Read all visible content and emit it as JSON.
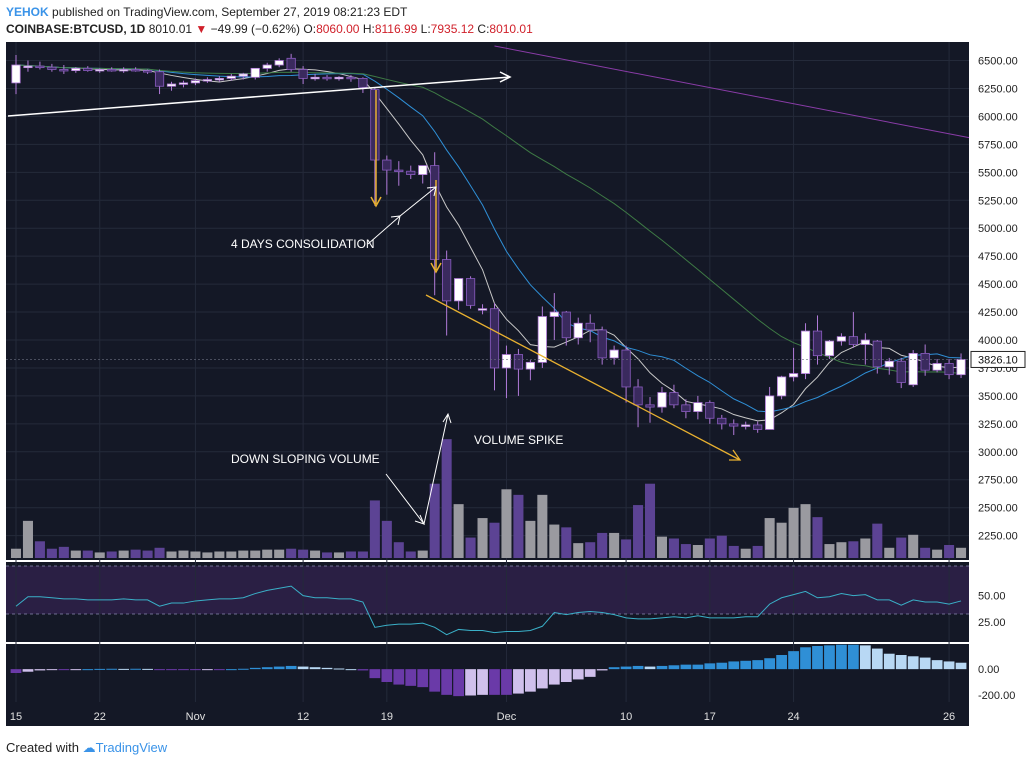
{
  "header": {
    "author": "YEHOK",
    "published": "published on TradingView.com, September 27, 2019 08:21:23 EDT",
    "symbol": "COINBASE:BTCUSD, 1D",
    "last": "8010.01",
    "change": "−49.99 (−0.62%)",
    "o_label": "O:",
    "o_value": "8060.00",
    "h_label": "H:",
    "h_value": "8116.99",
    "l_label": "L:",
    "l_value": "7935.12",
    "c_label": "C:",
    "c_value": "8010.01"
  },
  "footer": {
    "created_with": "Created with",
    "brand": "TradingView"
  },
  "colors": {
    "background": "#141826",
    "up": "#ffffff",
    "down": "#3a2a5e",
    "volume_up": "#9a9aa0",
    "volume_down": "#5c4394",
    "sma_fast": "#c8c8c8",
    "sma_mid": "#2f8fd6",
    "sma_slow": "#3e7a45",
    "sma_long": "#8a3ca8",
    "rsi_line": "#3ab0c8",
    "annotation": "#e8b030",
    "text_light": "#ffffff"
  },
  "chart_data": {
    "type": "candlestick",
    "x_tick_labels": [
      "15",
      "22",
      "Nov",
      "12",
      "19",
      "Dec",
      "10",
      "17",
      "24",
      "26"
    ],
    "price_axis": {
      "ticks": [
        2250,
        2500,
        2750,
        3000,
        3250,
        3500,
        3750,
        4000,
        4250,
        4500,
        4750,
        5000,
        5250,
        5500,
        5750,
        6000,
        6250,
        6500
      ],
      "tick_labels": [
        "2250.00",
        "2500.00",
        "2750.00",
        "3000.00",
        "3250.00",
        "3500.00",
        "3750.00",
        "4000.00",
        "4250.00",
        "4500.00",
        "4750.00",
        "5000.00",
        "5250.00",
        "5500.00",
        "5750.00",
        "6000.00",
        "6250.00",
        "6500.00"
      ],
      "range": [
        2050,
        6630
      ],
      "last_price_label": "3826.10"
    },
    "rsi_axis": {
      "tick_labels": [
        "50.00",
        "25.00"
      ],
      "ticks": [
        50,
        25
      ],
      "range": [
        8,
        80
      ]
    },
    "macd_axis": {
      "tick_labels": [
        "0.00",
        "-200.00"
      ],
      "ticks": [
        0,
        -200
      ],
      "range": [
        -240,
        180
      ]
    },
    "annotations": {
      "consolidation": "4 DAYS CONSOLIDATION",
      "volume_spike": "VOLUME SPIKE",
      "down_sloping_volume": "DOWN SLOPING VOLUME"
    },
    "candles": [
      {
        "o": 6300,
        "h": 6550,
        "l": 6200,
        "c": 6460
      },
      {
        "o": 6440,
        "h": 6500,
        "l": 6400,
        "c": 6450
      },
      {
        "o": 6450,
        "h": 6490,
        "l": 6420,
        "c": 6440
      },
      {
        "o": 6440,
        "h": 6470,
        "l": 6400,
        "c": 6420
      },
      {
        "o": 6420,
        "h": 6460,
        "l": 6380,
        "c": 6410
      },
      {
        "o": 6410,
        "h": 6440,
        "l": 6390,
        "c": 6430
      },
      {
        "o": 6430,
        "h": 6450,
        "l": 6400,
        "c": 6410
      },
      {
        "o": 6410,
        "h": 6430,
        "l": 6390,
        "c": 6420
      },
      {
        "o": 6420,
        "h": 6440,
        "l": 6400,
        "c": 6410
      },
      {
        "o": 6410,
        "h": 6440,
        "l": 6390,
        "c": 6420
      },
      {
        "o": 6420,
        "h": 6440,
        "l": 6400,
        "c": 6410
      },
      {
        "o": 6410,
        "h": 6420,
        "l": 6380,
        "c": 6400
      },
      {
        "o": 6400,
        "h": 6420,
        "l": 6200,
        "c": 6270
      },
      {
        "o": 6270,
        "h": 6310,
        "l": 6230,
        "c": 6290
      },
      {
        "o": 6290,
        "h": 6320,
        "l": 6260,
        "c": 6300
      },
      {
        "o": 6300,
        "h": 6340,
        "l": 6280,
        "c": 6320
      },
      {
        "o": 6320,
        "h": 6350,
        "l": 6300,
        "c": 6330
      },
      {
        "o": 6330,
        "h": 6360,
        "l": 6310,
        "c": 6340
      },
      {
        "o": 6340,
        "h": 6380,
        "l": 6320,
        "c": 6360
      },
      {
        "o": 6360,
        "h": 6390,
        "l": 6330,
        "c": 6380
      },
      {
        "o": 6350,
        "h": 6420,
        "l": 6330,
        "c": 6430
      },
      {
        "o": 6430,
        "h": 6480,
        "l": 6400,
        "c": 6460
      },
      {
        "o": 6460,
        "h": 6520,
        "l": 6440,
        "c": 6500
      },
      {
        "o": 6520,
        "h": 6560,
        "l": 6400,
        "c": 6420
      },
      {
        "o": 6420,
        "h": 6450,
        "l": 6290,
        "c": 6340
      },
      {
        "o": 6340,
        "h": 6380,
        "l": 6320,
        "c": 6350
      },
      {
        "o": 6350,
        "h": 6370,
        "l": 6320,
        "c": 6340
      },
      {
        "o": 6340,
        "h": 6360,
        "l": 6320,
        "c": 6350
      },
      {
        "o": 6350,
        "h": 6370,
        "l": 6310,
        "c": 6340
      },
      {
        "o": 6340,
        "h": 6350,
        "l": 6210,
        "c": 6260
      },
      {
        "o": 6240,
        "h": 6260,
        "l": 5200,
        "c": 5610
      },
      {
        "o": 5610,
        "h": 5650,
        "l": 5300,
        "c": 5520
      },
      {
        "o": 5520,
        "h": 5600,
        "l": 5380,
        "c": 5510
      },
      {
        "o": 5510,
        "h": 5560,
        "l": 5440,
        "c": 5480
      },
      {
        "o": 5480,
        "h": 5540,
        "l": 5400,
        "c": 5560
      },
      {
        "o": 5560,
        "h": 5680,
        "l": 4400,
        "c": 4720
      },
      {
        "o": 4720,
        "h": 4800,
        "l": 4040,
        "c": 4350
      },
      {
        "o": 4350,
        "h": 4550,
        "l": 4270,
        "c": 4550
      },
      {
        "o": 4550,
        "h": 4570,
        "l": 4280,
        "c": 4310
      },
      {
        "o": 4270,
        "h": 4320,
        "l": 4230,
        "c": 4280
      },
      {
        "o": 4280,
        "h": 4330,
        "l": 3550,
        "c": 3750
      },
      {
        "o": 3750,
        "h": 3950,
        "l": 3480,
        "c": 3870
      },
      {
        "o": 3870,
        "h": 3920,
        "l": 3500,
        "c": 3740
      },
      {
        "o": 3740,
        "h": 3820,
        "l": 3640,
        "c": 3800
      },
      {
        "o": 3800,
        "h": 4300,
        "l": 3750,
        "c": 4210
      },
      {
        "o": 4210,
        "h": 4420,
        "l": 4000,
        "c": 4250
      },
      {
        "o": 4250,
        "h": 4260,
        "l": 3950,
        "c": 4020
      },
      {
        "o": 4020,
        "h": 4200,
        "l": 3960,
        "c": 4150
      },
      {
        "o": 4150,
        "h": 4230,
        "l": 3980,
        "c": 4090
      },
      {
        "o": 4090,
        "h": 4120,
        "l": 3780,
        "c": 3840
      },
      {
        "o": 3840,
        "h": 3950,
        "l": 3780,
        "c": 3910
      },
      {
        "o": 3910,
        "h": 3950,
        "l": 3440,
        "c": 3580
      },
      {
        "o": 3580,
        "h": 3650,
        "l": 3220,
        "c": 3420
      },
      {
        "o": 3420,
        "h": 3490,
        "l": 3260,
        "c": 3400
      },
      {
        "o": 3400,
        "h": 3580,
        "l": 3350,
        "c": 3530
      },
      {
        "o": 3530,
        "h": 3600,
        "l": 3390,
        "c": 3420
      },
      {
        "o": 3420,
        "h": 3470,
        "l": 3300,
        "c": 3360
      },
      {
        "o": 3360,
        "h": 3500,
        "l": 3290,
        "c": 3440
      },
      {
        "o": 3440,
        "h": 3460,
        "l": 3250,
        "c": 3300
      },
      {
        "o": 3300,
        "h": 3330,
        "l": 3200,
        "c": 3250
      },
      {
        "o": 3250,
        "h": 3290,
        "l": 3150,
        "c": 3230
      },
      {
        "o": 3230,
        "h": 3270,
        "l": 3200,
        "c": 3240
      },
      {
        "o": 3240,
        "h": 3270,
        "l": 3170,
        "c": 3200
      },
      {
        "o": 3200,
        "h": 3580,
        "l": 3200,
        "c": 3500
      },
      {
        "o": 3500,
        "h": 3680,
        "l": 3470,
        "c": 3670
      },
      {
        "o": 3670,
        "h": 3930,
        "l": 3630,
        "c": 3700
      },
      {
        "o": 3700,
        "h": 4150,
        "l": 3650,
        "c": 4080
      },
      {
        "o": 4080,
        "h": 4220,
        "l": 3780,
        "c": 3860
      },
      {
        "o": 3860,
        "h": 4000,
        "l": 3830,
        "c": 3990
      },
      {
        "o": 3990,
        "h": 4060,
        "l": 3950,
        "c": 4030
      },
      {
        "o": 4030,
        "h": 4250,
        "l": 3930,
        "c": 3960
      },
      {
        "o": 3960,
        "h": 4060,
        "l": 3780,
        "c": 4000
      },
      {
        "o": 3990,
        "h": 4000,
        "l": 3700,
        "c": 3760
      },
      {
        "o": 3760,
        "h": 3840,
        "l": 3690,
        "c": 3810
      },
      {
        "o": 3810,
        "h": 3840,
        "l": 3570,
        "c": 3620
      },
      {
        "o": 3600,
        "h": 3910,
        "l": 3580,
        "c": 3880
      },
      {
        "o": 3880,
        "h": 3960,
        "l": 3680,
        "c": 3730
      },
      {
        "o": 3730,
        "h": 3830,
        "l": 3710,
        "c": 3790
      },
      {
        "o": 3790,
        "h": 3830,
        "l": 3650,
        "c": 3690
      },
      {
        "o": 3690,
        "h": 3880,
        "l": 3660,
        "c": 3826
      }
    ],
    "volume": [
      10,
      40,
      18,
      10,
      12,
      8,
      8,
      6,
      7,
      8,
      9,
      8,
      11,
      7,
      8,
      7,
      6,
      7,
      7,
      8,
      8,
      9,
      9,
      10,
      9,
      8,
      6,
      6,
      7,
      7,
      62,
      40,
      17,
      7,
      8,
      80,
      128,
      58,
      22,
      43,
      38,
      74,
      68,
      40,
      68,
      36,
      33,
      16,
      17,
      27,
      27,
      20,
      57,
      80,
      23,
      21,
      15,
      14,
      21,
      24,
      13,
      10,
      13,
      43,
      38,
      54,
      58,
      44,
      15,
      17,
      18,
      21,
      37,
      11,
      22,
      25,
      11,
      9,
      14,
      11
    ],
    "rsi": [
      40,
      49,
      49,
      48,
      47,
      47,
      46,
      46,
      46,
      47,
      46,
      46,
      40,
      43,
      43,
      45,
      46,
      47,
      47,
      48,
      52,
      55,
      57,
      59,
      50,
      48,
      48,
      47,
      47,
      44,
      20,
      22,
      23,
      23,
      24,
      20,
      13,
      18,
      17,
      17,
      15,
      16,
      16,
      17,
      21,
      34,
      32,
      34,
      35,
      34,
      32,
      29,
      28,
      28,
      29,
      30,
      29,
      31,
      29,
      29,
      29,
      30,
      30,
      42,
      48,
      51,
      54,
      48,
      49,
      52,
      50,
      51,
      46,
      46,
      41,
      46,
      44,
      44,
      42,
      45
    ],
    "macd_hist": [
      -30,
      -20,
      -10,
      -5,
      -5,
      -3,
      0,
      2,
      3,
      2,
      3,
      2,
      -3,
      -5,
      -5,
      -5,
      -2,
      -3,
      0,
      3,
      10,
      15,
      20,
      25,
      20,
      15,
      10,
      5,
      0,
      -10,
      -70,
      -100,
      -120,
      -130,
      -140,
      -175,
      -200,
      -210,
      -205,
      -200,
      -200,
      -200,
      -190,
      -175,
      -150,
      -120,
      -100,
      -80,
      -60,
      -10,
      15,
      20,
      25,
      20,
      25,
      30,
      35,
      35,
      45,
      50,
      60,
      65,
      70,
      85,
      110,
      140,
      170,
      180,
      185,
      190,
      190,
      185,
      160,
      120,
      110,
      100,
      90,
      70,
      60,
      50
    ]
  }
}
